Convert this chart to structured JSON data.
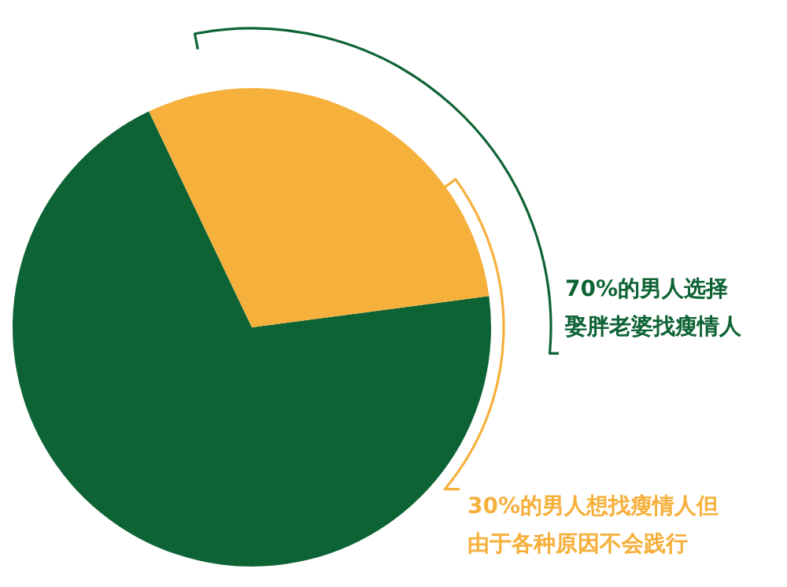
{
  "chart_data": {
    "type": "pie",
    "categories": [
      "70%的男人选择娶胖老婆找瘦情人",
      "30%的男人想找瘦情人但由于各种原因不会践行"
    ],
    "values": [
      70,
      30
    ],
    "colors": [
      "#0e6334",
      "#f6b03c"
    ],
    "legend": false
  }
}
